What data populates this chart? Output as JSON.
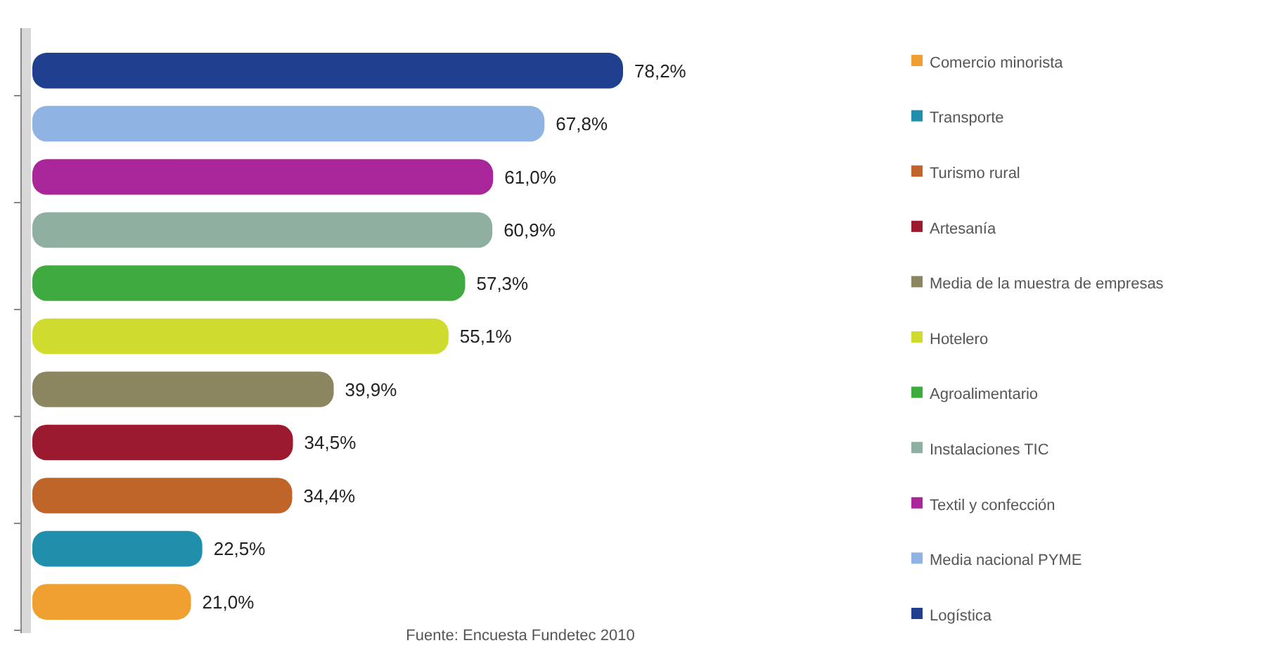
{
  "chart_data": {
    "type": "bar",
    "orientation": "horizontal",
    "stacked": true,
    "categories": [
      null,
      null,
      null,
      null,
      null,
      null,
      null,
      null,
      null,
      null,
      null
    ],
    "series": [
      {
        "name": "Comercio minorista",
        "color": "#f0a030",
        "values": [
          null,
          null,
          null,
          null,
          null,
          null,
          null,
          null,
          null,
          null,
          21.0
        ],
        "value_labels": [
          null,
          null,
          null,
          null,
          null,
          null,
          null,
          null,
          null,
          null,
          "21,0%"
        ]
      },
      {
        "name": "Transporte",
        "color": "#1f8fab",
        "values": [
          null,
          null,
          null,
          null,
          null,
          null,
          null,
          null,
          null,
          22.5,
          null
        ],
        "value_labels": [
          null,
          null,
          null,
          null,
          null,
          null,
          null,
          null,
          null,
          "22,5%",
          null
        ]
      },
      {
        "name": "Turismo rural",
        "color": "#c0652a",
        "values": [
          null,
          null,
          null,
          null,
          null,
          null,
          null,
          null,
          34.4,
          null,
          null
        ],
        "value_labels": [
          null,
          null,
          null,
          null,
          null,
          null,
          null,
          null,
          "34,4%",
          null,
          null
        ]
      },
      {
        "name": "Artesanía",
        "color": "#9c1a30",
        "values": [
          null,
          null,
          null,
          null,
          null,
          null,
          null,
          34.5,
          null,
          null,
          null
        ],
        "value_labels": [
          null,
          null,
          null,
          null,
          null,
          null,
          null,
          "34,5%",
          null,
          null,
          null
        ]
      },
      {
        "name": "Media de la muestra de empresas",
        "color": "#8c8660",
        "values": [
          null,
          null,
          null,
          null,
          null,
          null,
          39.9,
          null,
          null,
          null,
          null
        ],
        "value_labels": [
          null,
          null,
          null,
          null,
          null,
          null,
          "39,9%",
          null,
          null,
          null,
          null
        ]
      },
      {
        "name": "Hotelero",
        "color": "#cfdc2f",
        "values": [
          null,
          null,
          null,
          null,
          null,
          55.1,
          null,
          null,
          null,
          null,
          null
        ],
        "value_labels": [
          null,
          null,
          null,
          null,
          null,
          "55,1%",
          null,
          null,
          null,
          null,
          null
        ]
      },
      {
        "name": "Agroalimentario",
        "color": "#3faa3f",
        "values": [
          null,
          null,
          null,
          null,
          57.3,
          null,
          null,
          null,
          null,
          null,
          null
        ],
        "value_labels": [
          null,
          null,
          null,
          null,
          "57,3%",
          null,
          null,
          null,
          null,
          null,
          null
        ]
      },
      {
        "name": "Instalaciones TIC",
        "color": "#8fb0a0",
        "values": [
          null,
          null,
          null,
          60.9,
          null,
          null,
          null,
          null,
          null,
          null,
          null
        ],
        "value_labels": [
          null,
          null,
          null,
          "60,9%",
          null,
          null,
          null,
          null,
          null,
          null,
          null
        ]
      },
      {
        "name": "Textil y confección",
        "color": "#a8269a",
        "values": [
          null,
          null,
          61.0,
          null,
          null,
          null,
          null,
          null,
          null,
          null,
          null
        ],
        "value_labels": [
          null,
          null,
          "61,0%",
          null,
          null,
          null,
          null,
          null,
          null,
          null,
          null
        ]
      },
      {
        "name": "Media nacional PYME",
        "color": "#8fb4e3",
        "values": [
          null,
          67.8,
          null,
          null,
          null,
          null,
          null,
          null,
          null,
          null,
          null
        ],
        "value_labels": [
          null,
          "67,8%",
          null,
          null,
          null,
          null,
          null,
          null,
          null,
          null,
          null
        ]
      },
      {
        "name": "Logística",
        "color": "#1f3f8f",
        "values": [
          78.2,
          null,
          null,
          null,
          null,
          null,
          null,
          null,
          null,
          null,
          null
        ],
        "value_labels": [
          "78,2%",
          null,
          null,
          null,
          null,
          null,
          null,
          null,
          null,
          null,
          null
        ]
      }
    ],
    "legend": "right",
    "annotations": [
      "Fuente: Encuesta Fundetec 2010"
    ]
  }
}
